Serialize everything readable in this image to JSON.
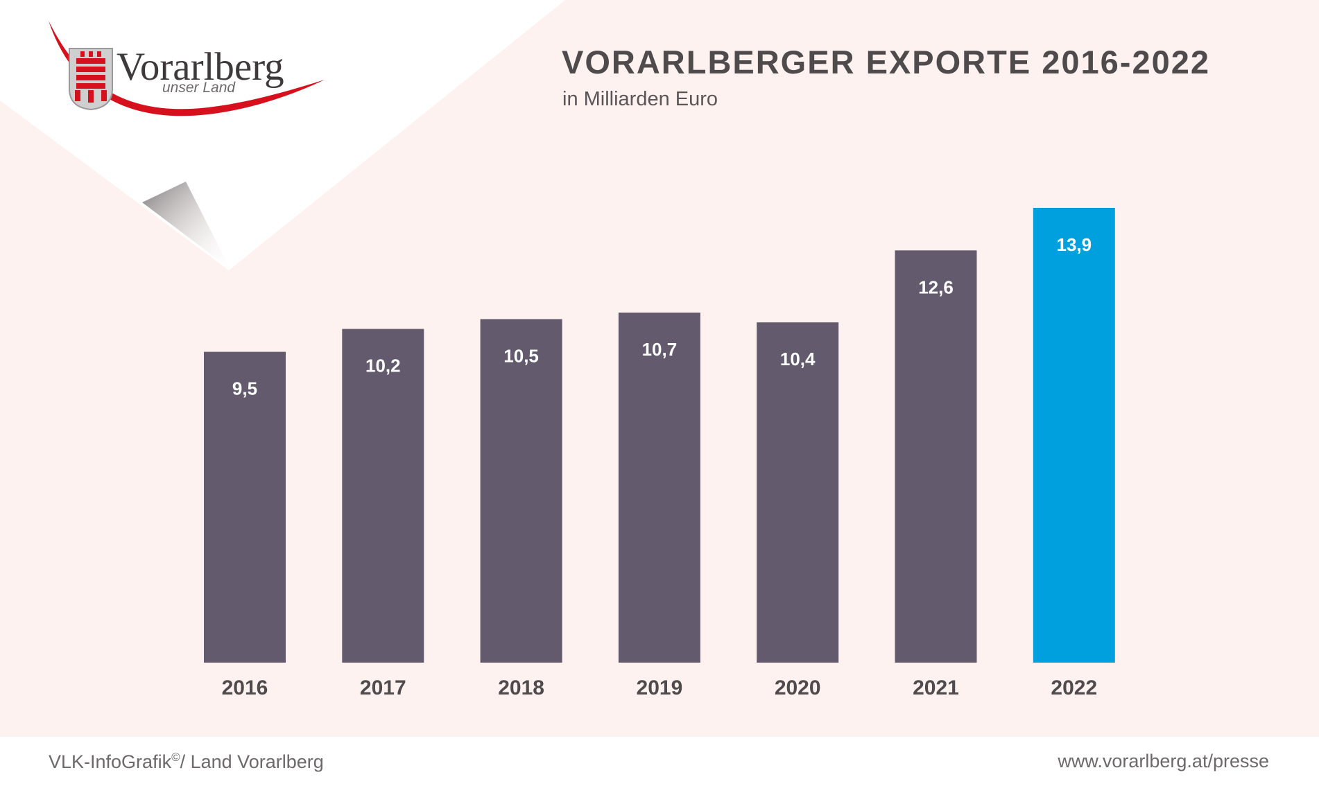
{
  "header": {
    "title": "VORARLBERGER EXPORTE 2016-2022",
    "subtitle": "in Milliarden Euro"
  },
  "logo": {
    "name": "Vorarlberg",
    "tagline": "unser Land",
    "icon": "coat-of-arms-icon"
  },
  "footer": {
    "credit_main": "VLK-InfoGrafik",
    "credit_sup": "©",
    "credit_rest": "/ Land Vorarlberg",
    "url": "www.vorarlberg.at/presse"
  },
  "colors": {
    "background": "#fdf2f0",
    "bar": "#635b6d",
    "highlight_bar": "#00a0de",
    "bar_label": "#ffffff",
    "axis_label": "#4f4b4c",
    "logo_red": "#d6101c"
  },
  "chart_data": {
    "type": "bar",
    "title": "VORARLBERGER EXPORTE 2016-2022",
    "subtitle": "in Milliarden Euro",
    "categories": [
      "2016",
      "2017",
      "2018",
      "2019",
      "2020",
      "2021",
      "2022"
    ],
    "values": [
      9.5,
      10.2,
      10.5,
      10.7,
      10.4,
      12.6,
      13.9
    ],
    "value_labels": [
      "9,5",
      "10,2",
      "10,5",
      "10,7",
      "10,4",
      "12,6",
      "13,9"
    ],
    "highlight": "2022",
    "xlabel": "",
    "ylabel": "",
    "grid": false,
    "legend": "none"
  }
}
